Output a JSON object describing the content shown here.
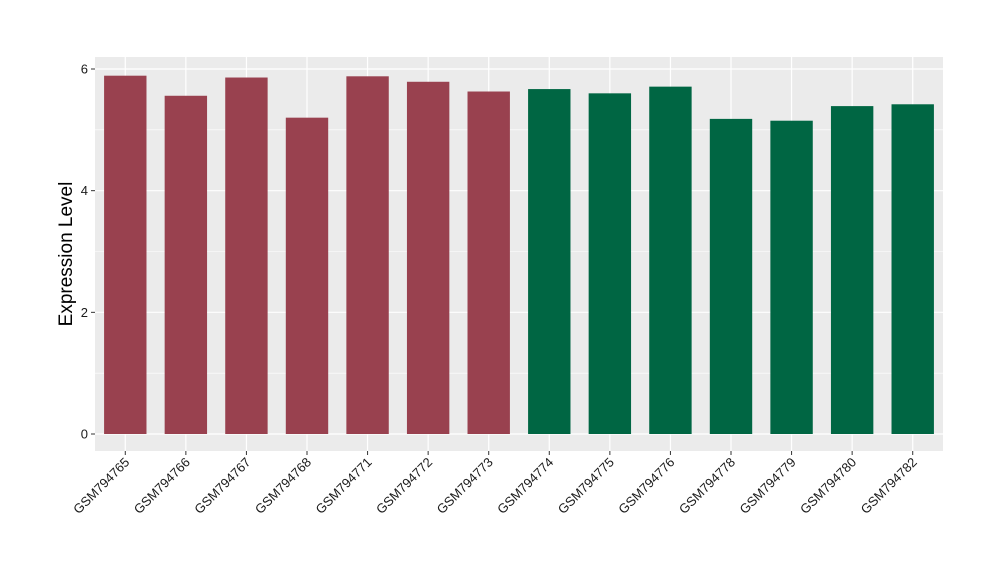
{
  "chart_data": {
    "type": "bar",
    "title": "",
    "xlabel": "",
    "ylabel": "Expression Level",
    "ylim": [
      0,
      6.25
    ],
    "yticks": [
      0,
      2,
      4,
      6
    ],
    "grid": true,
    "legend": "none",
    "background": "#ebebeb",
    "grid_color": "#ffffff",
    "categories": [
      "GSM794765",
      "GSM794766",
      "GSM794767",
      "GSM794768",
      "GSM794771",
      "GSM794772",
      "GSM794773",
      "GSM794774",
      "GSM794775",
      "GSM794776",
      "GSM794778",
      "GSM794779",
      "GSM794780",
      "GSM794782"
    ],
    "values": [
      5.89,
      5.56,
      5.86,
      5.2,
      5.88,
      5.79,
      5.63,
      5.67,
      5.6,
      5.71,
      5.18,
      5.15,
      5.39,
      5.42
    ],
    "group": [
      "a",
      "a",
      "a",
      "a",
      "a",
      "a",
      "a",
      "b",
      "b",
      "b",
      "b",
      "b",
      "b",
      "b"
    ],
    "group_colors": {
      "a": "#99414f",
      "b": "#006643"
    }
  }
}
